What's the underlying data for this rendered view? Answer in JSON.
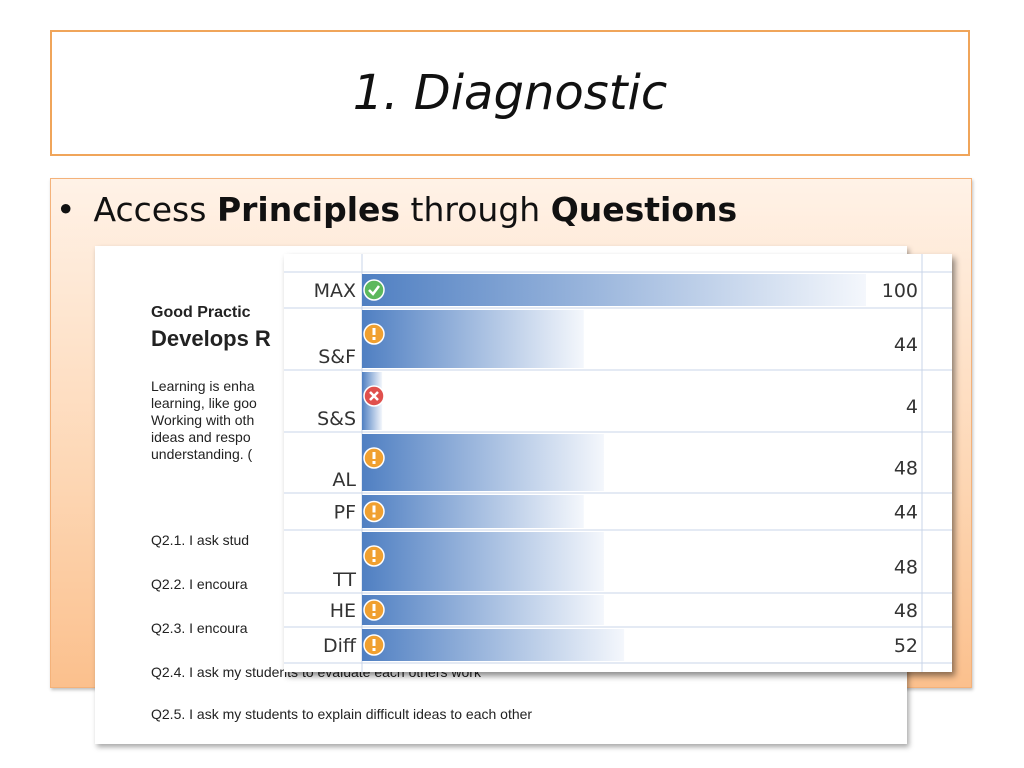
{
  "slide": {
    "title": "1. Diagnostic",
    "bullet": {
      "prefix": "Access ",
      "bold1": "Principles",
      "middle": " through ",
      "bold2": "Questions"
    }
  },
  "document": {
    "heading1": "Good Practic",
    "heading2": "Develops R",
    "paragraph_lines": [
      "Learning is enha",
      "learning, like goo",
      "Working with oth",
      "ideas and respo",
      "understanding. ("
    ],
    "questions": [
      "Q2.1.  I ask stud",
      "Q2.2.  I encoura",
      "Q2.3.  I encoura",
      "Q2.4.  I ask my students to evaluate each others work",
      "Q2.5.  I ask my students to explain difficult ideas to each other"
    ]
  },
  "chart_data": {
    "type": "bar",
    "orientation": "horizontal",
    "categories": [
      "MAX",
      "S&F",
      "S&S",
      "AL",
      "PF",
      "TT",
      "HE",
      "Diff"
    ],
    "values": [
      100,
      44,
      4,
      48,
      44,
      48,
      48,
      52
    ],
    "status_icons": [
      "check-icon",
      "warning-icon",
      "error-icon",
      "warning-icon",
      "warning-icon",
      "warning-icon",
      "warning-icon",
      "warning-icon"
    ],
    "xlim": [
      0,
      100
    ],
    "colors": {
      "bar_start": "#4f7fc2",
      "bar_end": "#f4f7fc",
      "check": "#5cb85c",
      "warning": "#f0a030",
      "error": "#e0504d",
      "grid": "#c8d4e8"
    }
  }
}
